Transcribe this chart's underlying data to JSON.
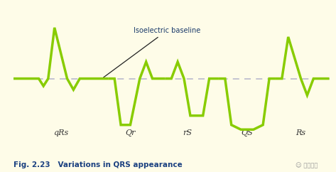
{
  "bg_color": "#FEFCE8",
  "panel_bg": "#FEFCE8",
  "ecg_color": "#88CC00",
  "baseline_dash_color": "#B8B8CC",
  "annotation_text": "Isoelectric baseline",
  "annotation_color": "#1A3A6A",
  "labels": [
    "qRs",
    "Qr",
    "rS",
    "QS",
    "Rs"
  ],
  "title": "Fig. 2.23   Variations in QRS appearance",
  "title_color": "#1A4080",
  "fig_width": 4.73,
  "fig_height": 2.42,
  "dpi": 100,
  "watermark": "医学点滴"
}
